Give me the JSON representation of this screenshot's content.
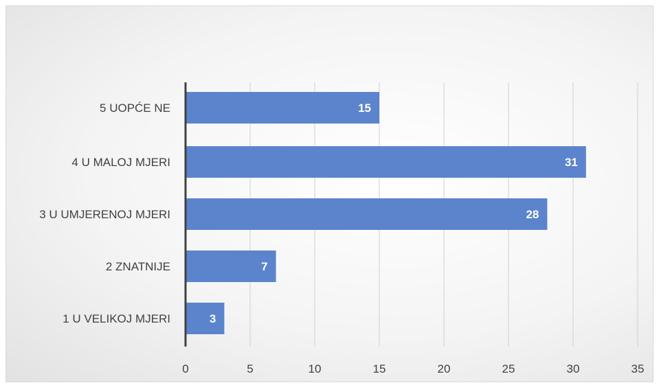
{
  "chart_data": {
    "type": "bar",
    "orientation": "horizontal",
    "categories": [
      "5 UOPĆE NE",
      "4 U MALOJ MJERI",
      "3 U UMJERENOJ MJERI",
      "2 ZNATNIJE",
      "1 U VELIKOJ MJERI"
    ],
    "values": [
      15,
      31,
      28,
      7,
      3
    ],
    "xlim": [
      0,
      35
    ],
    "xticks": [
      0,
      5,
      10,
      15,
      20,
      25,
      30,
      35
    ],
    "grid": true,
    "legend": "none",
    "bar_color": "#5b84cc",
    "axis_color": "#404040",
    "grid_color": "#d0d0d0"
  }
}
